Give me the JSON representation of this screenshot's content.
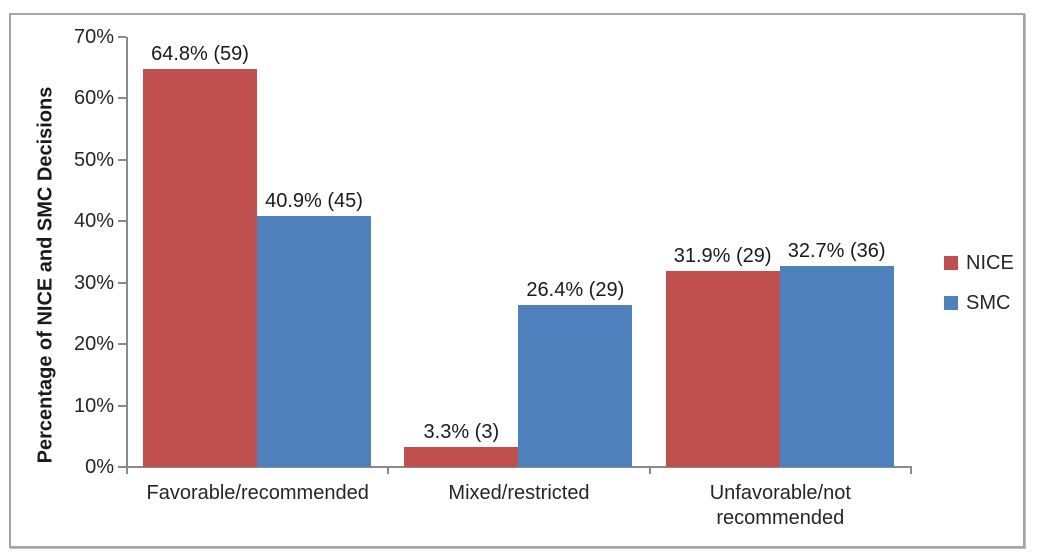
{
  "chart_data": {
    "type": "bar",
    "title": "",
    "xlabel": "",
    "ylabel": "Percentage of NICE and SMC Decisions",
    "categories": [
      "Favorable/recommended",
      "Mixed/restricted",
      "Unfavorable/not recommended"
    ],
    "series": [
      {
        "name": "NICE",
        "color": "#c0504d",
        "values": [
          64.8,
          3.3,
          31.9
        ],
        "counts": [
          59,
          3,
          29
        ],
        "point_labels": [
          "64.8% (59)",
          "3.3% (3)",
          "31.9% (29)"
        ]
      },
      {
        "name": "SMC",
        "color": "#4f81bd",
        "values": [
          40.9,
          26.4,
          32.7
        ],
        "counts": [
          45,
          29,
          36
        ],
        "point_labels": [
          "40.9% (45)",
          "26.4% (29)",
          "32.7% (36)"
        ]
      }
    ],
    "y_axis": {
      "min": 0,
      "max": 70,
      "step": 10,
      "tick_labels": [
        "0%",
        "10%",
        "20%",
        "30%",
        "40%",
        "50%",
        "60%",
        "70%"
      ],
      "unit": "%"
    },
    "legend": {
      "position": "right",
      "entries": [
        "NICE",
        "SMC"
      ]
    },
    "grid": false,
    "colors": {
      "axis": "#8a8a8a",
      "border": "#a6a6a6",
      "text": "#262626",
      "background": "#ffffff"
    }
  }
}
